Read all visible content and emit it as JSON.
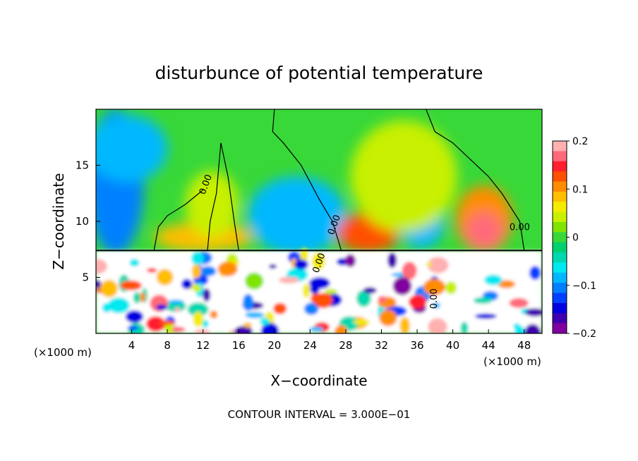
{
  "chart_data": {
    "type": "heatmap",
    "title": "disturbunce of potential temperature",
    "xlabel": "X−coordinate",
    "ylabel": "Z−coordinate",
    "x_unit_left": "(×1000 m)",
    "x_unit_right": "(×1000 m)",
    "footer": "CONTOUR INTERVAL = 3.000E−01",
    "xlim": [
      0,
      50
    ],
    "ylim": [
      0,
      20
    ],
    "x_ticks": [
      4,
      8,
      12,
      16,
      20,
      24,
      28,
      32,
      36,
      40,
      44,
      48
    ],
    "x_tick_labels": [
      "4",
      "8",
      "12",
      "16",
      "20",
      "24",
      "28",
      "32",
      "36",
      "40",
      "44",
      "48"
    ],
    "y_ticks": [
      5,
      10,
      15
    ],
    "y_tick_labels": [
      "5",
      "10",
      "15"
    ],
    "colorbar": {
      "range": [
        -0.2,
        0.2
      ],
      "ticks": [
        0.2,
        0.1,
        0,
        -0.1,
        -0.2
      ],
      "tick_labels": [
        "0.2",
        "0.1",
        "0",
        "−0.1",
        "−0.2"
      ],
      "colors": [
        "#ffb0b0",
        "#ff6a7a",
        "#ff1f2f",
        "#ff5000",
        "#ff8c00",
        "#ffbe00",
        "#f4ec00",
        "#c8f000",
        "#80e400",
        "#38d838",
        "#00d070",
        "#00d8b0",
        "#00e8f0",
        "#00b8ff",
        "#0080ff",
        "#0040ff",
        "#0000e0",
        "#4000b0",
        "#8000a0"
      ]
    },
    "contour_labels": [
      "0.00",
      "0.00",
      "0.00",
      "0.00",
      "0.00"
    ],
    "field_description": {
      "inversion_height": 7.4,
      "cold_anomaly_centers_x": [
        2,
        22,
        36
      ],
      "warm_anomaly_centers_x": [
        12,
        30,
        43
      ],
      "boundary_layer": "turbulent mixed layer below the inversion"
    }
  }
}
